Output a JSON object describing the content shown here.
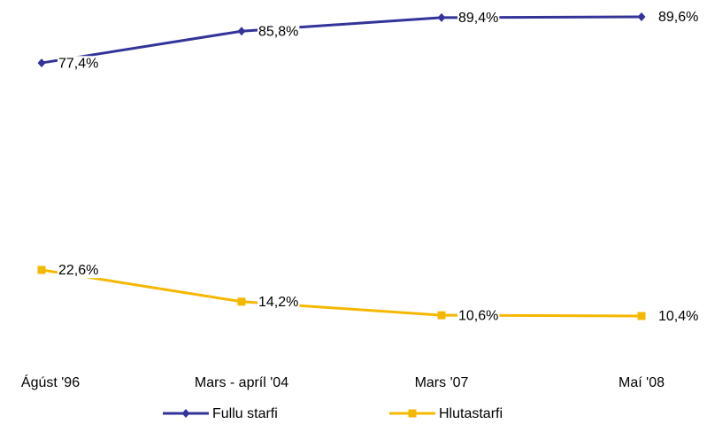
{
  "chart_data": {
    "type": "line",
    "categories": [
      "Ágúst '96",
      "Mars - apríl '04",
      "Mars '07",
      "Maí '08"
    ],
    "series": [
      {
        "name": "Fullu starfi",
        "color": "#333399",
        "marker": "diamond",
        "values": [
          77.4,
          85.8,
          89.4,
          89.6
        ],
        "value_labels": [
          "77,4%",
          "85,8%",
          "89,4%",
          "89,6%"
        ]
      },
      {
        "name": "Hlutastarfi",
        "color": "#f5b800",
        "marker": "square",
        "values": [
          22.6,
          14.2,
          10.6,
          10.4
        ],
        "value_labels": [
          "22,6%",
          "14,2%",
          "10,6%",
          "10,4%"
        ]
      }
    ],
    "legend": "bottom"
  }
}
